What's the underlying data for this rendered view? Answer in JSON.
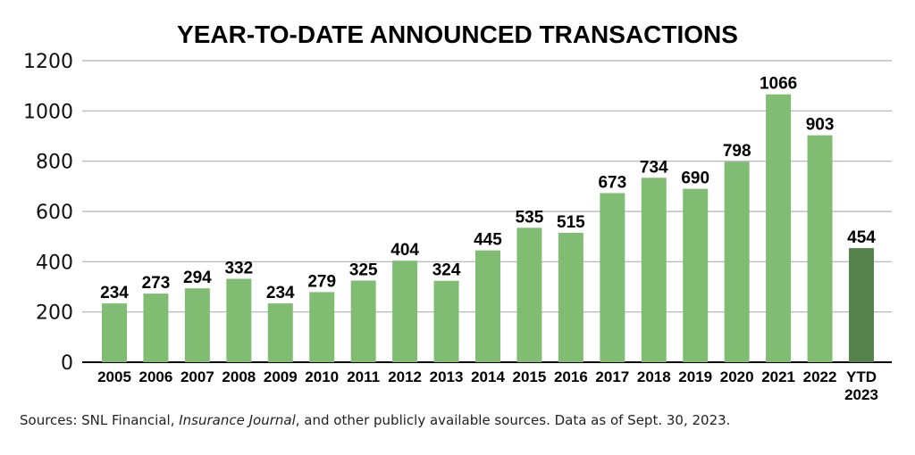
{
  "chart_data": {
    "type": "bar",
    "title": "YEAR-TO-DATE ANNOUNCED TRANSACTIONS",
    "categories": [
      "2005",
      "2006",
      "2007",
      "2008",
      "2009",
      "2010",
      "2011",
      "2012",
      "2013",
      "2014",
      "2015",
      "2016",
      "2017",
      "2018",
      "2019",
      "2020",
      "2021",
      "2022",
      "YTD 2023"
    ],
    "values": [
      234,
      273,
      294,
      332,
      234,
      279,
      325,
      404,
      324,
      445,
      535,
      515,
      673,
      734,
      690,
      798,
      1066,
      903,
      454
    ],
    "yticks": [
      0,
      200,
      400,
      600,
      800,
      1000,
      1200
    ],
    "ylim": [
      0,
      1200
    ],
    "grid": true,
    "colors": {
      "bar": "#80bd72",
      "highlight": "#56824c",
      "grid": "#b0b0b0",
      "axis": "#000000"
    },
    "highlight_index": 18
  },
  "source": {
    "prefix": "Sources: SNL Financial, ",
    "italic": "Insurance Journal",
    "suffix": ", and other publicly available sources. Data as of Sept. 30, 2023."
  }
}
